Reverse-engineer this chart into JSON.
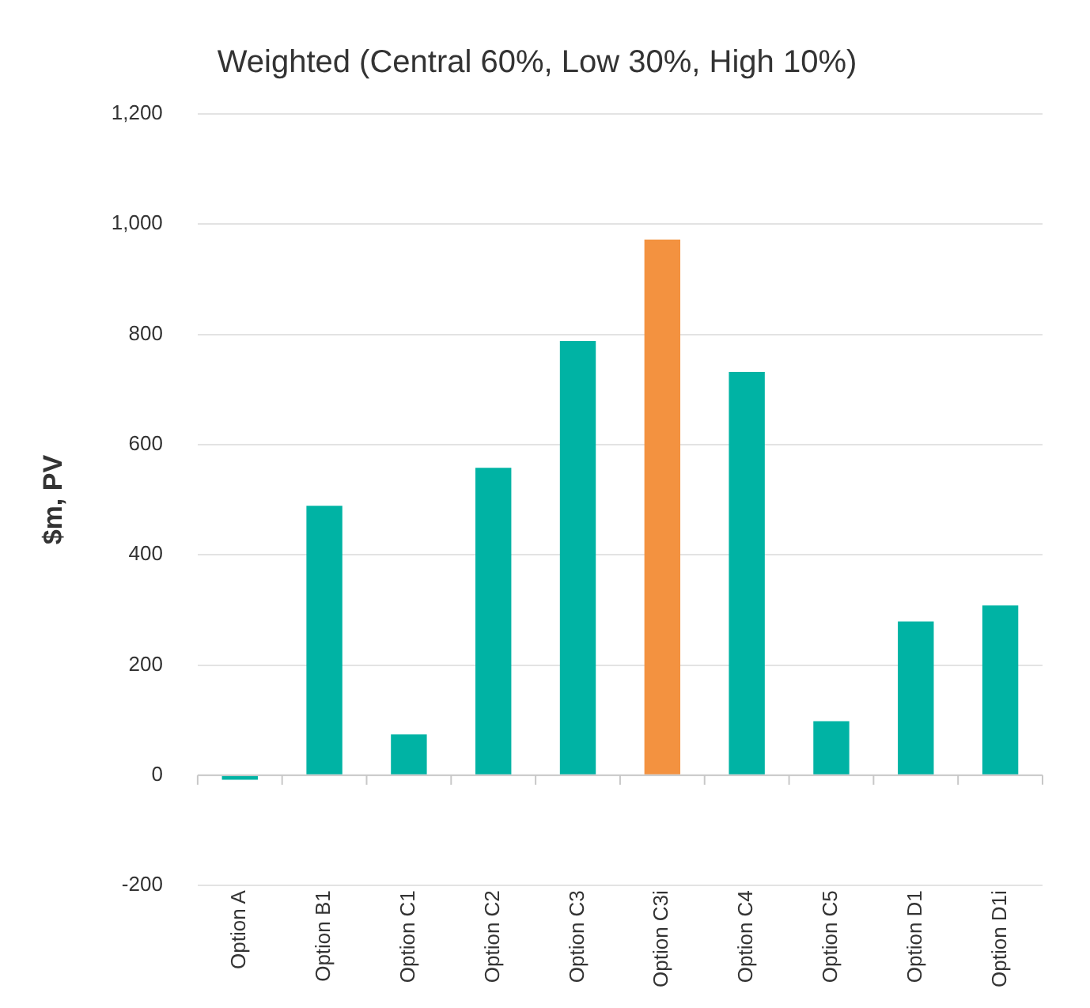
{
  "chart_data": {
    "type": "bar",
    "title": "Weighted (Central 60%, Low 30%, High 10%)",
    "ylabel": "$m, PV",
    "categories": [
      "Option A",
      "Option B1",
      "Option C1",
      "Option C2",
      "Option C3",
      "Option C3i",
      "Option C4",
      "Option C5",
      "Option D1",
      "Option D1i"
    ],
    "values": [
      -8,
      489,
      74,
      558,
      788,
      972,
      732,
      98,
      279,
      308
    ],
    "colors": [
      "#00b3a4",
      "#00b3a4",
      "#00b3a4",
      "#00b3a4",
      "#00b3a4",
      "#f39240",
      "#00b3a4",
      "#00b3a4",
      "#00b3a4",
      "#00b3a4"
    ],
    "ylim": [
      -200,
      1200
    ],
    "yticks": [
      -200,
      0,
      200,
      400,
      600,
      800,
      {
        "value": 1000,
        "label": "1,000"
      },
      {
        "value": 1200,
        "label": "1,200"
      }
    ],
    "grid": "y",
    "legend": false
  }
}
